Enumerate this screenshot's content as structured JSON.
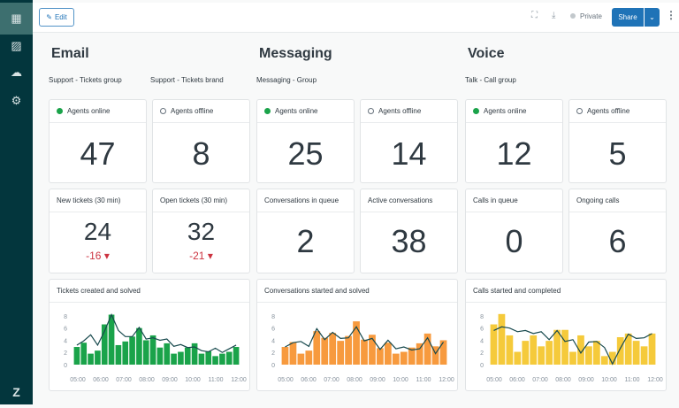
{
  "sidebar": {
    "items": [
      {
        "icon": "dashboard-icon"
      },
      {
        "icon": "reports-icon"
      },
      {
        "icon": "cloud-upload-icon"
      },
      {
        "icon": "settings-icon"
      }
    ],
    "logo": "zendesk-logo"
  },
  "topbar": {
    "edit_label": "Edit",
    "visibility": "Private",
    "share_label": "Share"
  },
  "sections": [
    {
      "title": "Email",
      "groups": [
        "Support - Tickets group",
        "Support - Tickets brand"
      ],
      "stats": [
        {
          "label": "Agents online",
          "value": "47",
          "status": "online"
        },
        {
          "label": "Agents offline",
          "value": "8",
          "status": "offline"
        },
        {
          "label": "New  tickets (30 min)",
          "value": "24",
          "delta": "-16 ▾"
        },
        {
          "label": "Open tickets (30 min)",
          "value": "32",
          "delta": "-21 ▾"
        }
      ],
      "chart_title": "Tickets created and solved"
    },
    {
      "title": "Messaging",
      "groups": [
        "Messaging - Group"
      ],
      "stats": [
        {
          "label": "Agents online",
          "value": "25",
          "status": "online"
        },
        {
          "label": "Agents offline",
          "value": "14",
          "status": "offline"
        },
        {
          "label": "Conversations in queue",
          "value": "2"
        },
        {
          "label": "Active conversations",
          "value": "38"
        }
      ],
      "chart_title": "Conversations started and solved"
    },
    {
      "title": "Voice",
      "groups": [
        "Talk - Call group"
      ],
      "stats": [
        {
          "label": "Agents online",
          "value": "12",
          "status": "online"
        },
        {
          "label": "Agents offline",
          "value": "5",
          "status": "offline"
        },
        {
          "label": "Calls in queue",
          "value": "0"
        },
        {
          "label": "Ongoing calls",
          "value": "6"
        }
      ],
      "chart_title": "Calls started and completed"
    }
  ],
  "chart_data": [
    {
      "type": "bar",
      "title": "Tickets created and solved",
      "color": "#1aa34a",
      "x_ticks": [
        "05:00",
        "06:00",
        "07:00",
        "08:00",
        "09:00",
        "10:00",
        "11:00",
        "12:00"
      ],
      "yticks": [
        0,
        2,
        4,
        6,
        8
      ],
      "ylim": [
        0,
        9
      ],
      "series": [
        {
          "name": "created",
          "type": "bar",
          "values": [
            2.9,
            3.6,
            1.8,
            2.3,
            6.6,
            8.2,
            3.2,
            3.8,
            4.6,
            6.0,
            4.0,
            4.8,
            2.8,
            3.5,
            1.8,
            2.1,
            2.8,
            3.5,
            1.8,
            2.2,
            1.4,
            1.8,
            2.1,
            2.9
          ]
        },
        {
          "name": "solved",
          "type": "line",
          "values": [
            3.2,
            3.9,
            4.9,
            3.2,
            5.5,
            8.2,
            5.6,
            4.6,
            4.6,
            6.1,
            4.2,
            4.4,
            4.0,
            4.2,
            3.0,
            3.3,
            2.8,
            2.9,
            2.3,
            2.1,
            2.7,
            2.0,
            2.6,
            3.2
          ]
        }
      ]
    },
    {
      "type": "bar",
      "title": "Conversations started and solved",
      "color": "#f79a3e",
      "x_ticks": [
        "05:00",
        "06:00",
        "07:00",
        "08:00",
        "09:00",
        "10:00",
        "11:00",
        "12:00"
      ],
      "yticks": [
        0,
        2,
        4,
        6,
        8
      ],
      "ylim": [
        0,
        9
      ],
      "series": [
        {
          "name": "started",
          "type": "bar",
          "values": [
            2.9,
            3.7,
            1.8,
            2.3,
            5.5,
            4.4,
            5.2,
            3.9,
            4.7,
            7.1,
            4.1,
            4.9,
            2.7,
            3.6,
            1.8,
            2.1,
            2.8,
            3.5,
            5.1,
            3.0,
            4.0
          ]
        },
        {
          "name": "solved",
          "type": "line",
          "values": [
            2.9,
            3.6,
            3.8,
            3.0,
            5.9,
            4.1,
            5.3,
            4.3,
            4.4,
            6.2,
            3.9,
            4.3,
            2.5,
            4.0,
            2.6,
            2.9,
            2.4,
            2.6,
            4.4,
            1.8,
            3.7
          ]
        }
      ]
    },
    {
      "type": "bar",
      "title": "Calls started and completed",
      "color": "#f5ca3b",
      "x_ticks": [
        "05:00",
        "06:00",
        "07:00",
        "08:00",
        "09:00",
        "10:00",
        "11:00",
        "12:00"
      ],
      "yticks": [
        0,
        2,
        4,
        6,
        8
      ],
      "ylim": [
        0,
        9
      ],
      "series": [
        {
          "name": "started",
          "type": "bar",
          "values": [
            6.6,
            8.3,
            4.8,
            2.1,
            3.9,
            4.8,
            3.0,
            3.9,
            5.7,
            5.7,
            2.1,
            4.8,
            3.0,
            3.9,
            1.4,
            2.1,
            4.5,
            5.1,
            3.9,
            3.0,
            5.1
          ]
        },
        {
          "name": "completed",
          "type": "line",
          "values": [
            5.6,
            6.2,
            6.0,
            5.4,
            5.6,
            5.1,
            5.4,
            4.1,
            5.6,
            3.8,
            4.1,
            1.9,
            3.7,
            3.8,
            2.8,
            0.1,
            2.7,
            5.0,
            4.3,
            4.4,
            5.1
          ]
        }
      ]
    }
  ]
}
